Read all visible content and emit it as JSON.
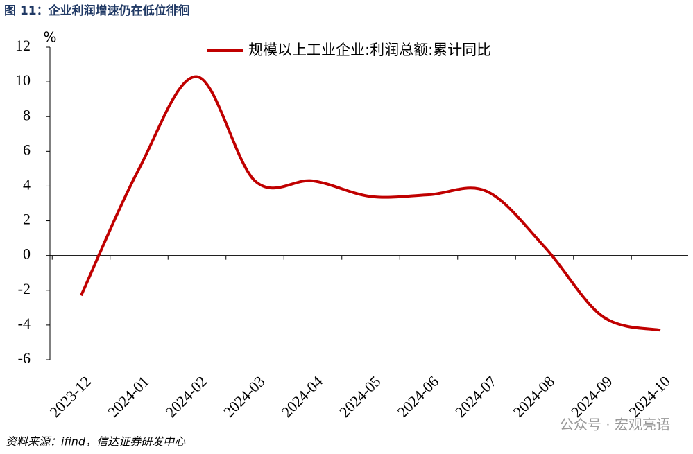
{
  "chart_data": {
    "type": "line",
    "title": "图 11：企业利润增速仍在低位徘徊",
    "y_label": "%",
    "categories": [
      "2023-12",
      "2024-01",
      "2024-02",
      "2024-03",
      "2024-04",
      "2024-05",
      "2024-06",
      "2024-07",
      "2024-08",
      "2024-09",
      "2024-10"
    ],
    "series": [
      {
        "name": "规模以上工业企业:利润总额:累计同比",
        "color": "#c00000",
        "values": [
          -2.3,
          5,
          10.3,
          4.3,
          4.3,
          3.4,
          3.5,
          3.7,
          0.5,
          -3.5,
          -4.3
        ]
      }
    ],
    "ylim": [
      -6,
      12
    ],
    "yticks": [
      -6,
      -4,
      -2,
      0,
      2,
      4,
      6,
      8,
      10,
      12
    ],
    "legend": "top",
    "source": "资料来源：ifind，信达证券研发中心",
    "watermark": "公众号 · 宏观亮语"
  }
}
